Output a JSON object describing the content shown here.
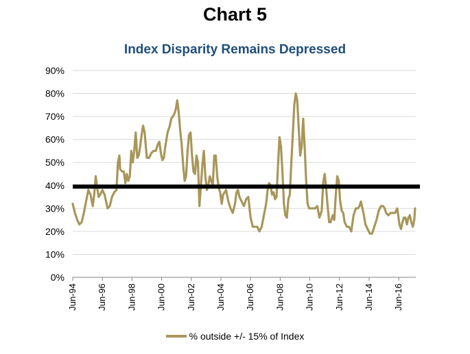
{
  "chart_data": {
    "type": "line",
    "title": "Chart 5",
    "subtitle": "Index Disparity Remains Depressed",
    "xlabel": "",
    "ylabel": "",
    "ylim": [
      0,
      90
    ],
    "yticks": [
      "0%",
      "10%",
      "20%",
      "30%",
      "40%",
      "50%",
      "60%",
      "70%",
      "80%",
      "90%"
    ],
    "xticks": [
      "Jun-94",
      "Jun-96",
      "Jun-98",
      "Jun-00",
      "Jun-02",
      "Jun-04",
      "Jun-06",
      "Jun-08",
      "Jun-10",
      "Jun-12",
      "Jun-14",
      "Jun-16"
    ],
    "xlim": [
      1994.45,
      2017.6
    ],
    "grid": true,
    "legend": "bottom",
    "reference_line": {
      "value": 39.5,
      "color": "#000000"
    },
    "series": [
      {
        "name": "% outside +/- 15% of Index",
        "color": "#a8965a",
        "x": [
          1994.45,
          1994.6,
          1994.75,
          1994.9,
          1995.05,
          1995.2,
          1995.35,
          1995.5,
          1995.65,
          1995.8,
          1995.9,
          1996.0,
          1996.1,
          1996.2,
          1996.3,
          1996.45,
          1996.6,
          1996.8,
          1996.95,
          1997.1,
          1997.25,
          1997.4,
          1997.5,
          1997.6,
          1997.65,
          1997.8,
          1997.9,
          1998.0,
          1998.1,
          1998.2,
          1998.3,
          1998.4,
          1998.5,
          1998.6,
          1998.7,
          1998.8,
          1998.9,
          1999.0,
          1999.1,
          1999.2,
          1999.3,
          1999.45,
          1999.6,
          1999.75,
          1999.9,
          2000.05,
          2000.2,
          2000.3,
          2000.4,
          2000.5,
          2000.6,
          2000.7,
          2000.85,
          2001.0,
          2001.1,
          2001.2,
          2001.3,
          2001.4,
          2001.5,
          2001.6,
          2001.7,
          2001.8,
          2001.9,
          2002.0,
          2002.1,
          2002.2,
          2002.3,
          2002.4,
          2002.5,
          2002.6,
          2002.7,
          2002.8,
          2002.9,
          2003.0,
          2003.1,
          2003.2,
          2003.3,
          2003.4,
          2003.5,
          2003.6,
          2003.7,
          2003.8,
          2003.9,
          2004.0,
          2004.1,
          2004.2,
          2004.3,
          2004.4,
          2004.5,
          2004.6,
          2004.8,
          2004.95,
          2005.1,
          2005.25,
          2005.4,
          2005.5,
          2005.6,
          2005.7,
          2005.85,
          2006.0,
          2006.15,
          2006.3,
          2006.45,
          2006.6,
          2006.75,
          2006.9,
          2007.05,
          2007.2,
          2007.35,
          2007.5,
          2007.6,
          2007.7,
          2007.8,
          2007.9,
          2008.0,
          2008.1,
          2008.2,
          2008.3,
          2008.4,
          2008.5,
          2008.6,
          2008.7,
          2008.8,
          2008.9,
          2009.0,
          2009.1,
          2009.2,
          2009.3,
          2009.4,
          2009.5,
          2009.6,
          2009.7,
          2009.8,
          2009.9,
          2010.0,
          2010.1,
          2010.2,
          2010.3,
          2010.4,
          2010.5,
          2010.65,
          2010.8,
          2010.95,
          2011.1,
          2011.25,
          2011.35,
          2011.45,
          2011.55,
          2011.65,
          2011.75,
          2011.85,
          2012.0,
          2012.1,
          2012.2,
          2012.3,
          2012.4,
          2012.5,
          2012.6,
          2012.7,
          2012.8,
          2012.95,
          2013.1,
          2013.25,
          2013.4,
          2013.55,
          2013.7,
          2013.8,
          2013.9,
          2014.0,
          2014.1,
          2014.2,
          2014.35,
          2014.5,
          2014.65,
          2014.8,
          2014.95,
          2015.1,
          2015.25,
          2015.4,
          2015.5,
          2015.6,
          2015.75,
          2015.9,
          2016.05,
          2016.2,
          2016.35,
          2016.5,
          2016.6,
          2016.7,
          2016.8,
          2016.9,
          2017.0,
          2017.1,
          2017.2,
          2017.3,
          2017.4,
          2017.5,
          2017.55
        ],
        "values": [
          32,
          28,
          25,
          23,
          24,
          28,
          33,
          38,
          36,
          31,
          36,
          44,
          39,
          35,
          36,
          38,
          36,
          30,
          31,
          35,
          37,
          38,
          50,
          53,
          47,
          46,
          46,
          41,
          45,
          42,
          44,
          55,
          50,
          55,
          63,
          52,
          53,
          57,
          62,
          66,
          63,
          52,
          52,
          54,
          55,
          55,
          58,
          59,
          54,
          51,
          52,
          57,
          63,
          66,
          69,
          70,
          71,
          73,
          77,
          72,
          64,
          58,
          49,
          42,
          44,
          55,
          62,
          63,
          53,
          46,
          45,
          53,
          50,
          31,
          40,
          49,
          55,
          44,
          38,
          40,
          44,
          42,
          40,
          53,
          53,
          44,
          39,
          37,
          32,
          36,
          38,
          33,
          30,
          28,
          32,
          37,
          38,
          35,
          33,
          31,
          34,
          35,
          26,
          22,
          22,
          22,
          20,
          22,
          27,
          32,
          38,
          41,
          40,
          36,
          37,
          34,
          35,
          48,
          61,
          57,
          46,
          32,
          27,
          26,
          34,
          36,
          50,
          62,
          75,
          80,
          77,
          65,
          53,
          57,
          69,
          57,
          42,
          32,
          30,
          30,
          30,
          30,
          31,
          26,
          29,
          41,
          45,
          39,
          31,
          24,
          24,
          27,
          25,
          36,
          44,
          42,
          33,
          29,
          28,
          24,
          22,
          22,
          20,
          27,
          30,
          30,
          31,
          33,
          30,
          27,
          23,
          21,
          19,
          19,
          22,
          25,
          29,
          31,
          31,
          30,
          28,
          27,
          28,
          28,
          28,
          30,
          23,
          21,
          24,
          26,
          26,
          23,
          26,
          27,
          24,
          22,
          25,
          30
        ]
      }
    ]
  }
}
